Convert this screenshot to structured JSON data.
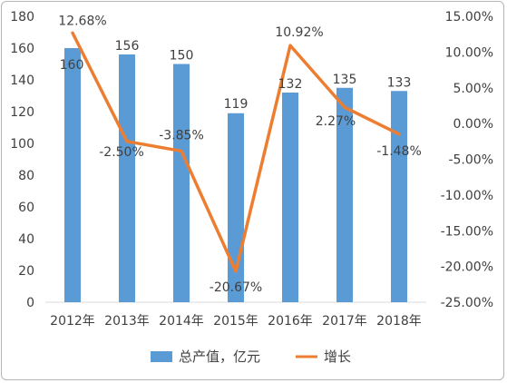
{
  "chart_data": {
    "type": "bar+line",
    "categories": [
      "2012年",
      "2013年",
      "2014年",
      "2015年",
      "2016年",
      "2017年",
      "2018年"
    ],
    "series": [
      {
        "name": "总产值，亿元",
        "type": "bar",
        "axis": "left",
        "color": "#5b9bd5",
        "values": [
          160,
          156,
          150,
          119,
          132,
          135,
          133
        ],
        "labels": [
          "160",
          "156",
          "150",
          "119",
          "132",
          "135",
          "133"
        ]
      },
      {
        "name": "增长",
        "type": "line",
        "axis": "right",
        "color": "#ed7d31",
        "values": [
          12.68,
          -2.5,
          -3.85,
          -20.67,
          10.92,
          2.27,
          -1.48
        ],
        "labels": [
          "12.68%",
          "-2.50%",
          "-3.85%",
          "-20.67%",
          "10.92%",
          "2.27%",
          "-1.48%"
        ]
      }
    ],
    "y_left": {
      "range": [
        0,
        180
      ],
      "ticks": [
        "0",
        "20",
        "40",
        "60",
        "80",
        "100",
        "120",
        "140",
        "160",
        "180"
      ]
    },
    "y_right": {
      "range": [
        -25,
        15
      ],
      "ticks": [
        "15.00%",
        "10.00%",
        "5.00%",
        "0.00%",
        "-5.00%",
        "-10.00%",
        "-15.00%",
        "-20.00%",
        "-25.00%"
      ]
    },
    "grid": false,
    "legend_position": "bottom"
  }
}
